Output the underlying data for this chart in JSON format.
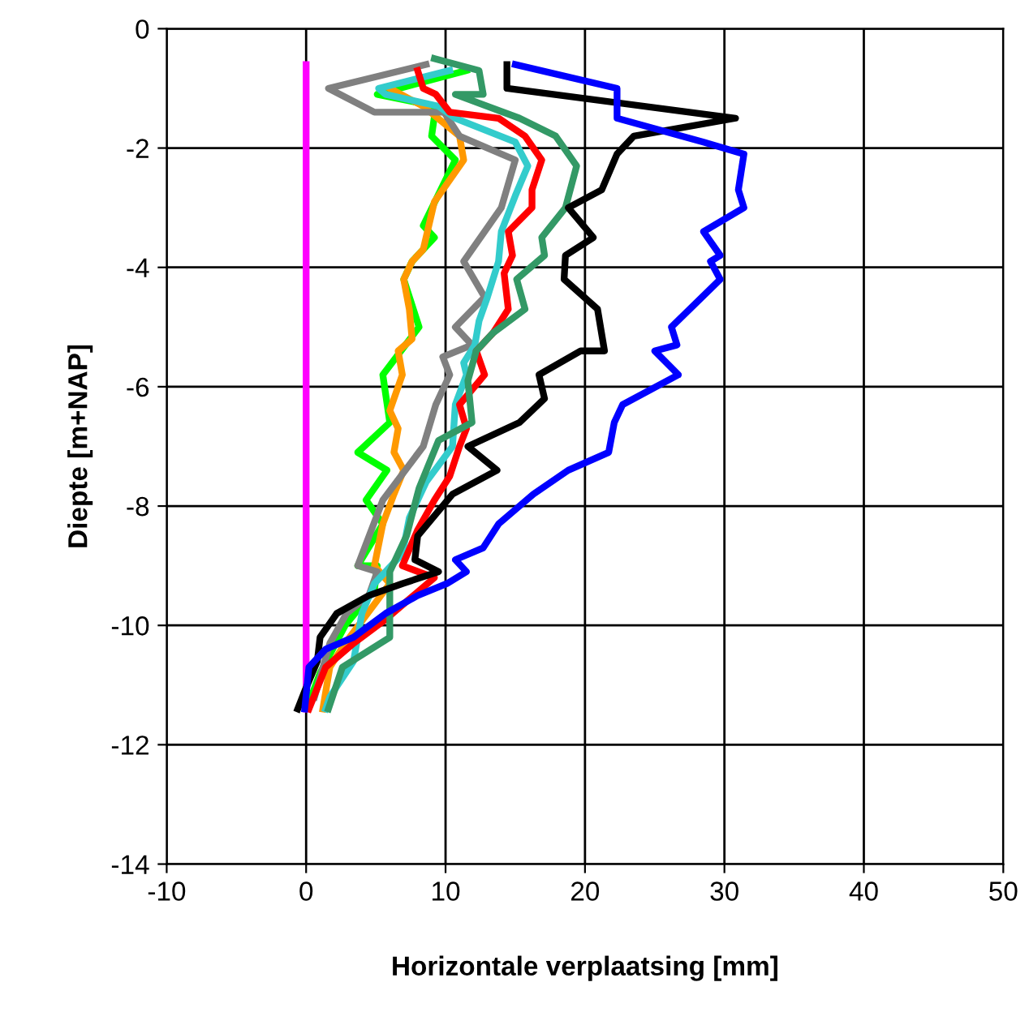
{
  "chart_data": {
    "type": "line",
    "xlabel": "Horizontale verplaatsing [mm]",
    "ylabel": "Diepte [m+NAP]",
    "xlim": [
      -10,
      50
    ],
    "xticks": [
      -10,
      0,
      10,
      20,
      30,
      40,
      50
    ],
    "ylim": [
      -14,
      0
    ],
    "yticks": [
      -14,
      -12,
      -10,
      -8,
      -6,
      -4,
      -2,
      0
    ],
    "grid": true,
    "marker": "none",
    "line_style": "solid",
    "series": [
      {
        "color": "#ff00ff",
        "x": [
          0,
          0
        ],
        "values": [
          -0.6,
          -11.4
        ]
      },
      {
        "color": "#00ff00",
        "x": [
          11.5,
          5.1,
          9.3,
          9.0,
          10.7,
          8.4,
          9.2,
          7.6,
          7.0,
          8.1,
          5.5,
          6.0,
          3.7,
          5.8,
          4.3,
          5.5,
          3.7,
          5.1,
          4.9,
          2.8,
          1.0,
          0.2
        ],
        "values": [
          -0.7,
          -1.1,
          -1.3,
          -1.8,
          -2.2,
          -3.3,
          -3.5,
          -3.9,
          -4.2,
          -5.0,
          -5.8,
          -6.6,
          -7.1,
          -7.4,
          -7.9,
          -8.3,
          -9.0,
          -9.0,
          -9.4,
          -10.0,
          -10.8,
          -11.3
        ]
      },
      {
        "color": "#ff9900",
        "x": [
          6.0,
          8.4,
          11.0,
          11.3,
          9.2,
          8.4,
          7.6,
          7.0,
          7.4,
          7.6,
          6.6,
          6.9,
          6.0,
          6.6,
          6.3,
          7.0,
          6.3,
          5.5,
          4.9,
          6.0,
          2.8,
          1.7,
          1.2
        ],
        "values": [
          -1.0,
          -1.3,
          -1.8,
          -2.2,
          -2.9,
          -3.7,
          -3.9,
          -4.2,
          -4.7,
          -5.2,
          -5.4,
          -5.8,
          -6.4,
          -6.7,
          -7.1,
          -7.4,
          -7.8,
          -8.3,
          -9.0,
          -9.3,
          -10.3,
          -10.7,
          -11.4
        ]
      },
      {
        "color": "#808080",
        "x": [
          8.6,
          1.6,
          4.9,
          9.9,
          11.0,
          15.0,
          14.0,
          12.8,
          11.3,
          12.8,
          10.7,
          11.9,
          9.8,
          10.3,
          9.3,
          8.4,
          5.5,
          3.7,
          5.1,
          4.5,
          2.9,
          1.7,
          0.6
        ],
        "values": [
          -0.6,
          -1.0,
          -1.4,
          -1.4,
          -1.8,
          -2.2,
          -3.0,
          -3.4,
          -3.9,
          -4.5,
          -5.0,
          -5.3,
          -5.5,
          -5.8,
          -6.3,
          -7.0,
          -7.9,
          -9.0,
          -9.1,
          -9.5,
          -9.8,
          -10.3,
          -11.2
        ]
      },
      {
        "color": "#33cccc",
        "x": [
          10.3,
          5.2,
          5.7,
          9.5,
          10.7,
          15.0,
          15.9,
          15.0,
          14.0,
          13.8,
          13.0,
          12.4,
          12.1,
          11.3,
          11.5,
          10.7,
          10.5,
          8.6,
          7.4,
          6.9,
          4.9,
          4.0,
          3.4,
          1.7,
          1.4
        ],
        "values": [
          -0.7,
          -1.0,
          -1.1,
          -1.3,
          -1.5,
          -1.9,
          -2.3,
          -2.8,
          -3.4,
          -3.9,
          -4.5,
          -4.9,
          -5.3,
          -5.6,
          -5.8,
          -6.3,
          -7.0,
          -7.6,
          -8.2,
          -8.8,
          -9.3,
          -9.8,
          -10.6,
          -11.2,
          -11.4
        ]
      },
      {
        "color": "#ff0000",
        "x": [
          8.0,
          8.4,
          9.3,
          10.3,
          13.8,
          15.7,
          16.9,
          16.2,
          16.2,
          14.5,
          14.8,
          14.2,
          14.5,
          13.4,
          12.2,
          12.8,
          11.0,
          11.5,
          11.0,
          10.3,
          9.2,
          8.0,
          6.9,
          9.2,
          7.2,
          5.7,
          3.4,
          1.4,
          0.2
        ],
        "values": [
          -0.7,
          -1.0,
          -1.1,
          -1.4,
          -1.5,
          -1.8,
          -2.2,
          -2.7,
          -3.0,
          -3.4,
          -3.8,
          -4.1,
          -4.7,
          -5.1,
          -5.4,
          -5.8,
          -6.3,
          -6.7,
          -7.0,
          -7.5,
          -7.9,
          -8.4,
          -9.0,
          -9.2,
          -9.6,
          -9.9,
          -10.3,
          -10.7,
          -11.4
        ]
      },
      {
        "color": "#339966",
        "x": [
          9.2,
          12.4,
          12.7,
          10.7,
          15.3,
          17.9,
          19.4,
          18.6,
          16.9,
          17.1,
          15.1,
          15.7,
          13.4,
          12.2,
          11.6,
          11.9,
          9.5,
          8.1,
          7.2,
          6.0,
          6.0,
          2.6,
          1.6
        ],
        "values": [
          -0.5,
          -0.7,
          -1.1,
          -1.1,
          -1.5,
          -1.8,
          -2.3,
          -3.0,
          -3.5,
          -3.8,
          -4.2,
          -4.7,
          -5.1,
          -5.4,
          -5.9,
          -6.6,
          -6.9,
          -7.7,
          -8.5,
          -9.1,
          -10.2,
          -10.7,
          -11.4
        ]
      },
      {
        "color": "#000000",
        "x": [
          14.4,
          14.4,
          30.8,
          23.5,
          22.3,
          21.2,
          18.8,
          20.6,
          18.6,
          18.5,
          20.9,
          21.4,
          19.7,
          16.7,
          17.1,
          15.3,
          11.6,
          13.7,
          10.5,
          8.0,
          7.8,
          9.5,
          6.9,
          4.5,
          2.2,
          1.0,
          0.8,
          -0.1,
          -0.6
        ],
        "values": [
          -0.6,
          -1.0,
          -1.5,
          -1.8,
          -2.1,
          -2.7,
          -3.0,
          -3.5,
          -3.8,
          -4.2,
          -4.7,
          -5.4,
          -5.4,
          -5.8,
          -6.2,
          -6.6,
          -7.0,
          -7.4,
          -7.8,
          -8.5,
          -8.9,
          -9.1,
          -9.3,
          -9.5,
          -9.8,
          -10.2,
          -10.6,
          -11.1,
          -11.4
        ]
      },
      {
        "color": "#0000ff",
        "x": [
          15.0,
          22.3,
          22.3,
          28.5,
          31.4,
          31.0,
          31.4,
          28.5,
          29.7,
          29.0,
          29.7,
          26.2,
          26.6,
          25.0,
          26.7,
          22.7,
          22.1,
          21.7,
          18.8,
          16.3,
          13.8,
          12.7,
          10.7,
          11.5,
          10.1,
          8.0,
          5.7,
          3.4,
          1.4,
          0.2,
          -0.1
        ],
        "values": [
          -0.6,
          -1.0,
          -1.5,
          -1.9,
          -2.1,
          -2.7,
          -3.0,
          -3.4,
          -3.8,
          -3.9,
          -4.2,
          -5.0,
          -5.3,
          -5.4,
          -5.8,
          -6.3,
          -6.6,
          -7.1,
          -7.4,
          -7.8,
          -8.3,
          -8.7,
          -8.9,
          -9.1,
          -9.3,
          -9.5,
          -9.8,
          -10.2,
          -10.4,
          -10.7,
          -11.4
        ]
      }
    ]
  }
}
